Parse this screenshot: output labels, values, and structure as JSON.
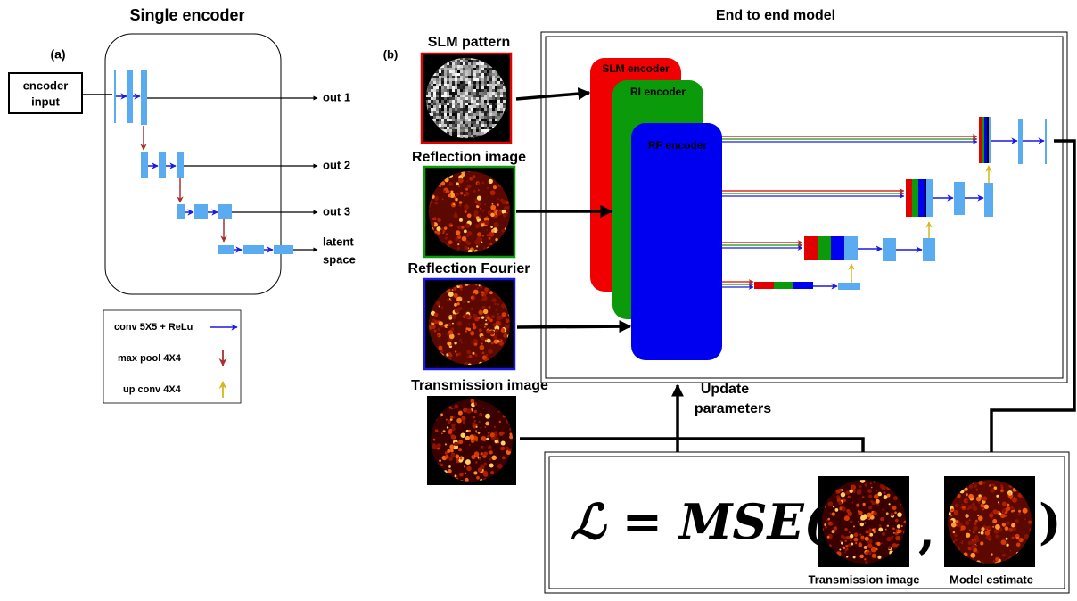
{
  "panel_a": {
    "title": "Single encoder",
    "label": "(a)",
    "input_lines": [
      "encoder",
      "input"
    ],
    "outputs": [
      "out 1",
      "out 2",
      "out 3"
    ],
    "latent_lines": [
      "latent",
      "space"
    ],
    "legend": [
      "conv 5X5 + ReLu",
      "max pool 4X4",
      "up conv 4X4"
    ]
  },
  "panel_b": {
    "title": "End to end model",
    "label": "(b)",
    "inputs": [
      "SLM pattern",
      "Reflection image",
      "Reflection Fourier",
      "Transmission image"
    ],
    "encoders": [
      "SLM encoder",
      "RI encoder",
      "RF encoder"
    ],
    "update_lines": [
      "Update",
      "parameters"
    ],
    "loss": {
      "lhs": "ℒ = MSE(",
      "comma": ",",
      "close": ")",
      "image_labels": [
        "Transmission image",
        "Model estimate"
      ]
    }
  }
}
